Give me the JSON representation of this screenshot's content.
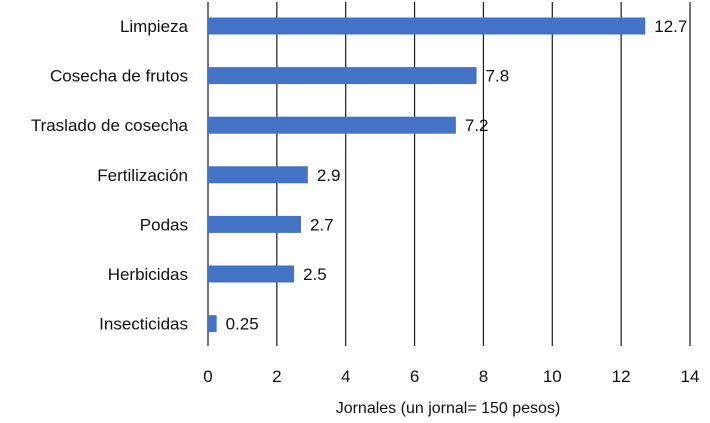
{
  "chart_data": {
    "type": "bar",
    "orientation": "horizontal",
    "categories": [
      "Limpieza",
      "Cosecha de frutos",
      "Traslado de cosecha",
      "Fertilización",
      "Podas",
      "Herbicidas",
      "Insecticidas"
    ],
    "values": [
      12.7,
      7.8,
      7.2,
      2.9,
      2.7,
      2.5,
      0.25
    ],
    "data_labels": [
      "12.7",
      "7.8",
      "7.2",
      "2.9",
      "2.7",
      "2.5",
      "0.25"
    ],
    "xlabel": "Jornales (un jornal= 150 pesos)",
    "ylabel": "",
    "xlim": [
      0,
      14
    ],
    "xticks": [
      0,
      2,
      4,
      6,
      8,
      10,
      12,
      14
    ],
    "grid": "vertical",
    "legend": "none",
    "bar_color": "#4472C4"
  }
}
